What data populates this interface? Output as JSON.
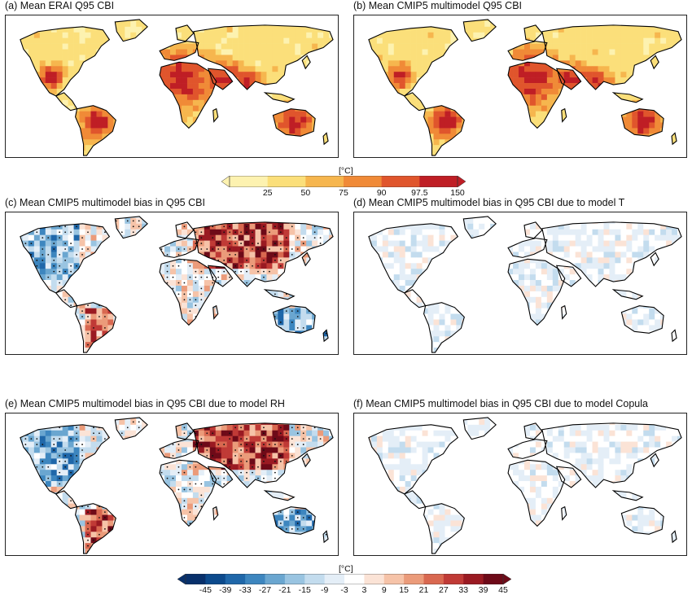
{
  "panels": [
    {
      "id": "a",
      "title": "(a) Mean ERAI Q95 CBI",
      "scheme": "heat",
      "variant": 0
    },
    {
      "id": "b",
      "title": "(b) Mean CMIP5 multimodel Q95 CBI",
      "scheme": "heat",
      "variant": 1
    },
    {
      "id": "c",
      "title": "(c) Mean CMIP5 multimodel bias in Q95 CBI",
      "scheme": "bias_strong",
      "variant": 2
    },
    {
      "id": "d",
      "title": "(d) Mean CMIP5 multimodel bias in Q95 CBI due to model T",
      "scheme": "bias_weak",
      "variant": 3
    },
    {
      "id": "e",
      "title": "(e) Mean CMIP5 multimodel bias in Q95 CBI due to model RH",
      "scheme": "bias_strong",
      "variant": 4
    },
    {
      "id": "f",
      "title": "(f) Mean CMIP5 multimodel bias in Q95 CBI due to model Copula",
      "scheme": "bias_weak",
      "variant": 5
    }
  ],
  "colorbar_top": {
    "unit": "[°C]",
    "ticks": [
      "25",
      "50",
      "75",
      "90",
      "97.5",
      "150"
    ],
    "colors": [
      "#fdf2b0",
      "#fbdf7a",
      "#f6b64e",
      "#f08a37",
      "#e0552c",
      "#bf1e25"
    ]
  },
  "colorbar_bottom": {
    "unit": "[°C]",
    "ticks": [
      "-45",
      "-39",
      "-33",
      "-27",
      "-21",
      "-15",
      "-9",
      "-3",
      "3",
      "9",
      "15",
      "21",
      "27",
      "33",
      "39",
      "45"
    ],
    "colors": [
      "#08306b",
      "#0c4a8c",
      "#1f67a9",
      "#3d86bf",
      "#6aa6d0",
      "#99c4e1",
      "#c3dcee",
      "#e4eef7",
      "#ffffff",
      "#fbe3d6",
      "#f6c3a8",
      "#eb9b7a",
      "#d96850",
      "#c03a36",
      "#9a1a22",
      "#6e0a18"
    ]
  }
}
